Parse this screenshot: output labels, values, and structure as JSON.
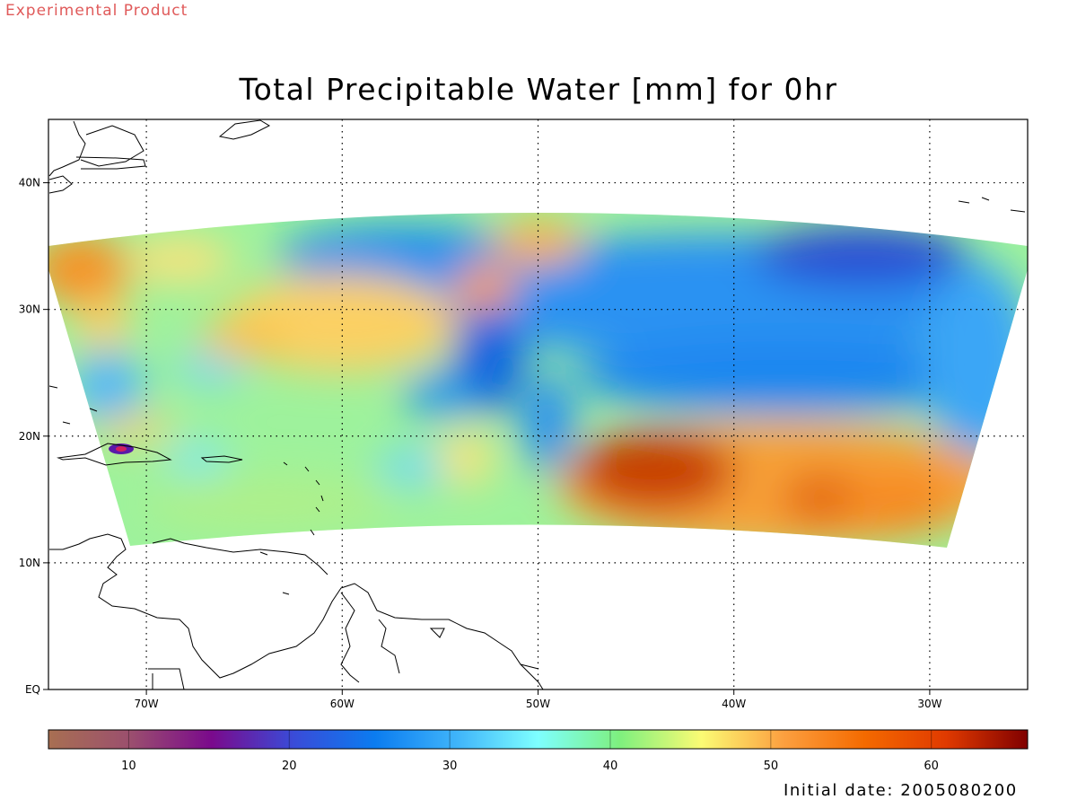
{
  "header": {
    "product_label": "Experimental Product",
    "title": "Total Precipitable Water [mm] for 0hr"
  },
  "map": {
    "lon_range": [
      -75,
      -25
    ],
    "lat_range": [
      0,
      45
    ],
    "lon_ticks": [
      {
        "value": -70,
        "label": "70W"
      },
      {
        "value": -60,
        "label": "60W"
      },
      {
        "value": -50,
        "label": "50W"
      },
      {
        "value": -40,
        "label": "40W"
      },
      {
        "value": -30,
        "label": "30W"
      }
    ],
    "lat_ticks": [
      {
        "value": 0,
        "label": "EQ"
      },
      {
        "value": 10,
        "label": "10N"
      },
      {
        "value": 20,
        "label": "20N"
      },
      {
        "value": 30,
        "label": "30N"
      },
      {
        "value": 40,
        "label": "40N"
      }
    ],
    "grid": true,
    "grid_style": "dotted",
    "field": "Total Precipitable Water",
    "units": "mm"
  },
  "colorbar": {
    "min": 5,
    "max": 66,
    "ticks": [
      10,
      20,
      30,
      40,
      50,
      60
    ],
    "colors": [
      "#a86f52",
      "#9b4f6e",
      "#7a0a8c",
      "#3a4bd8",
      "#0b7cf0",
      "#3fb4fa",
      "#7effff",
      "#7ef07e",
      "#fbfb74",
      "#fca040",
      "#f46a00",
      "#e03a00",
      "#800000"
    ]
  },
  "footer": {
    "initial_date": "Initial date: 2005080200"
  }
}
